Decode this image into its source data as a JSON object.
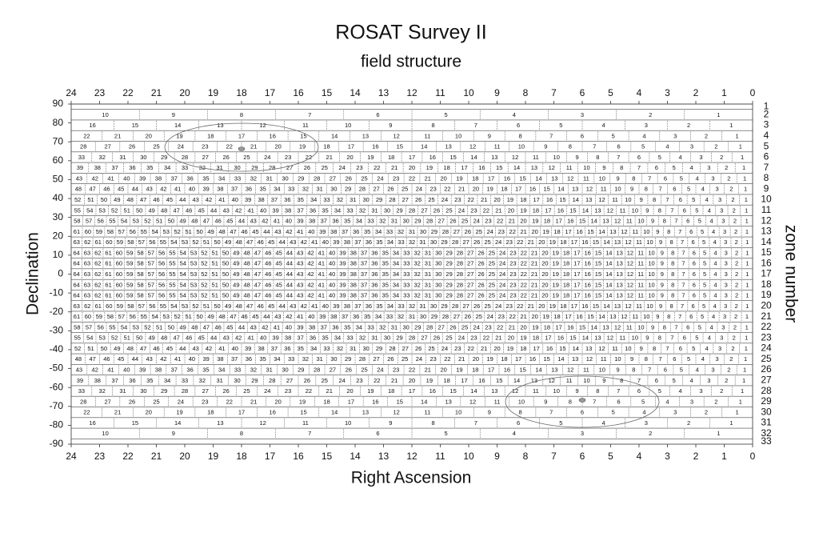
{
  "title": "ROSAT Survey II",
  "subtitle": "field structure",
  "x_axis": {
    "label": "Right Ascension",
    "ticks": [
      24,
      23,
      22,
      21,
      20,
      19,
      18,
      17,
      16,
      15,
      14,
      13,
      12,
      11,
      10,
      9,
      8,
      7,
      6,
      5,
      4,
      3,
      2,
      1,
      0
    ]
  },
  "y_axis": {
    "label": "Declination",
    "ticks": [
      90,
      80,
      70,
      60,
      50,
      40,
      30,
      20,
      10,
      0,
      -10,
      -20,
      -30,
      -40,
      -50,
      -60,
      -70,
      -80,
      -90
    ]
  },
  "zone_axis": {
    "label": "zone number",
    "ticks": [
      1,
      2,
      3,
      4,
      5,
      6,
      7,
      8,
      9,
      10,
      11,
      12,
      13,
      14,
      15,
      16,
      17,
      18,
      19,
      20,
      21,
      22,
      23,
      24,
      25,
      26,
      27,
      28,
      29,
      30,
      31,
      32,
      33
    ]
  },
  "zone_fields": [
    [
      10,
      9,
      8,
      7,
      6,
      5,
      4,
      3,
      2,
      1
    ],
    [
      16,
      15,
      14,
      13,
      12,
      11,
      10,
      9,
      8,
      7,
      6,
      5,
      4,
      3,
      2,
      1
    ],
    [
      22,
      21,
      20,
      19,
      18,
      17,
      16,
      15,
      14,
      13,
      12,
      11,
      10,
      9,
      8,
      7,
      6,
      5,
      4,
      3,
      2,
      1
    ],
    [
      28,
      27,
      26,
      25,
      24,
      23,
      22,
      21,
      20,
      19,
      18,
      17,
      16,
      15,
      14,
      13,
      12,
      11,
      10,
      9,
      8,
      7,
      6,
      5,
      4,
      3,
      2,
      1
    ],
    [
      33,
      32,
      31,
      30,
      29,
      28,
      27,
      26,
      25,
      24,
      23,
      22,
      21,
      20,
      19,
      18,
      17,
      16,
      15,
      14,
      13,
      12,
      11,
      10,
      9,
      8,
      7,
      6,
      5,
      4,
      3,
      2,
      1
    ],
    [
      39,
      38,
      37,
      36,
      35,
      34,
      33,
      32,
      31,
      30,
      29,
      28,
      27,
      26,
      25,
      24,
      23,
      22,
      21,
      20,
      19,
      18,
      17,
      16,
      15,
      14,
      13,
      12,
      11,
      10,
      9,
      8,
      7,
      6,
      5,
      4,
      3,
      2,
      1
    ],
    [
      43,
      42,
      41,
      40,
      39,
      38,
      37,
      36,
      35,
      34,
      33,
      32,
      31,
      30,
      29,
      28,
      27,
      26,
      25,
      24,
      23,
      22,
      21,
      20,
      19,
      18,
      17,
      16,
      15,
      14,
      13,
      12,
      11,
      10,
      9,
      8,
      7,
      6,
      5,
      4,
      3,
      2,
      1
    ],
    [
      48,
      47,
      46,
      45,
      44,
      43,
      42,
      41,
      40,
      39,
      38,
      37,
      36,
      35,
      34,
      33,
      32,
      31,
      30,
      29,
      28,
      27,
      26,
      25,
      24,
      23,
      22,
      21,
      20,
      19,
      18,
      17,
      16,
      15,
      14,
      13,
      12,
      11,
      10,
      9,
      8,
      7,
      6,
      5,
      4,
      3,
      2,
      1
    ],
    [
      52,
      51,
      50,
      49,
      48,
      47,
      46,
      45,
      44,
      43,
      42,
      41,
      40,
      39,
      38,
      37,
      36,
      35,
      34,
      33,
      32,
      31,
      30,
      29,
      28,
      27,
      26,
      25,
      24,
      23,
      22,
      21,
      20,
      19,
      18,
      17,
      16,
      15,
      14,
      13,
      12,
      11,
      10,
      9,
      8,
      7,
      6,
      5,
      4,
      3,
      2,
      1
    ],
    [
      55,
      54,
      53,
      52,
      51,
      50,
      49,
      48,
      47,
      46,
      45,
      44,
      43,
      42,
      41,
      40,
      39,
      38,
      37,
      36,
      35,
      34,
      33,
      32,
      31,
      30,
      29,
      28,
      27,
      26,
      25,
      24,
      23,
      22,
      21,
      20,
      19,
      18,
      17,
      16,
      15,
      14,
      13,
      12,
      11,
      10,
      9,
      8,
      7,
      6,
      5,
      4,
      3,
      2,
      1
    ],
    [
      58,
      57,
      56,
      55,
      54,
      53,
      52,
      51,
      50,
      49,
      48,
      47,
      46,
      45,
      44,
      43,
      42,
      41,
      40,
      39,
      38,
      37,
      36,
      35,
      34,
      33,
      32,
      31,
      30,
      29,
      28,
      27,
      26,
      25,
      24,
      23,
      22,
      21,
      20,
      19,
      18,
      17,
      16,
      15,
      14,
      13,
      12,
      11,
      10,
      9,
      8,
      7,
      6,
      5,
      4,
      3,
      2,
      1
    ],
    [
      61,
      60,
      59,
      58,
      57,
      56,
      55,
      54,
      53,
      52,
      51,
      50,
      49,
      48,
      47,
      46,
      45,
      44,
      43,
      42,
      41,
      40,
      39,
      38,
      37,
      36,
      35,
      34,
      33,
      32,
      31,
      30,
      29,
      28,
      27,
      26,
      25,
      24,
      23,
      22,
      21,
      20,
      19,
      18,
      17,
      16,
      15,
      14,
      13,
      12,
      11,
      10,
      9,
      8,
      7,
      6,
      5,
      4,
      3,
      2,
      1
    ],
    [
      63,
      62,
      61,
      60,
      59,
      58,
      57,
      56,
      55,
      54,
      53,
      52,
      51,
      50,
      49,
      48,
      47,
      46,
      45,
      44,
      43,
      42,
      41,
      40,
      39,
      38,
      37,
      36,
      35,
      34,
      33,
      32,
      31,
      30,
      29,
      28,
      27,
      26,
      25,
      24,
      23,
      22,
      21,
      20,
      19,
      18,
      17,
      16,
      15,
      14,
      13,
      12,
      11,
      10,
      9,
      8,
      7,
      6,
      5,
      4,
      3,
      2,
      1
    ],
    [
      64,
      63,
      62,
      61,
      60,
      59,
      58,
      57,
      56,
      55,
      54,
      53,
      52,
      51,
      50,
      49,
      48,
      47,
      46,
      45,
      44,
      43,
      42,
      41,
      40,
      39,
      38,
      37,
      36,
      35,
      34,
      33,
      32,
      31,
      30,
      29,
      28,
      27,
      26,
      25,
      24,
      23,
      22,
      21,
      20,
      19,
      18,
      17,
      16,
      15,
      14,
      13,
      12,
      11,
      10,
      9,
      8,
      7,
      6,
      5,
      4,
      3,
      2,
      1
    ],
    [
      64,
      63,
      62,
      61,
      60,
      59,
      58,
      57,
      56,
      55,
      54,
      53,
      52,
      51,
      50,
      49,
      48,
      47,
      46,
      45,
      44,
      43,
      42,
      41,
      40,
      39,
      38,
      37,
      36,
      35,
      34,
      33,
      32,
      31,
      30,
      29,
      28,
      27,
      26,
      25,
      24,
      23,
      22,
      21,
      20,
      19,
      18,
      17,
      16,
      15,
      14,
      13,
      12,
      11,
      10,
      9,
      8,
      7,
      6,
      5,
      4,
      3,
      2,
      1
    ],
    [
      64,
      63,
      62,
      61,
      60,
      59,
      58,
      57,
      56,
      55,
      54,
      53,
      52,
      51,
      50,
      49,
      48,
      47,
      46,
      45,
      44,
      43,
      42,
      41,
      40,
      39,
      38,
      37,
      36,
      35,
      34,
      33,
      32,
      31,
      30,
      29,
      28,
      27,
      26,
      25,
      24,
      23,
      22,
      21,
      20,
      19,
      18,
      17,
      16,
      15,
      14,
      13,
      12,
      11,
      10,
      9,
      8,
      7,
      6,
      5,
      4,
      3,
      2,
      1
    ],
    [
      64,
      63,
      62,
      61,
      60,
      59,
      58,
      57,
      56,
      55,
      54,
      53,
      52,
      51,
      50,
      49,
      48,
      47,
      46,
      45,
      44,
      43,
      42,
      41,
      40,
      39,
      38,
      37,
      36,
      35,
      34,
      33,
      32,
      31,
      30,
      29,
      28,
      27,
      26,
      25,
      24,
      23,
      22,
      21,
      20,
      19,
      18,
      17,
      16,
      15,
      14,
      13,
      12,
      11,
      10,
      9,
      8,
      7,
      6,
      5,
      4,
      3,
      2,
      1
    ],
    [
      64,
      63,
      62,
      61,
      60,
      59,
      58,
      57,
      56,
      55,
      54,
      53,
      52,
      51,
      50,
      49,
      48,
      47,
      46,
      45,
      44,
      43,
      42,
      41,
      40,
      39,
      38,
      37,
      36,
      35,
      34,
      33,
      32,
      31,
      30,
      29,
      28,
      27,
      26,
      25,
      24,
      23,
      22,
      21,
      20,
      19,
      18,
      17,
      16,
      15,
      14,
      13,
      12,
      11,
      10,
      9,
      8,
      7,
      6,
      5,
      4,
      3,
      2,
      1
    ],
    [
      63,
      62,
      61,
      60,
      59,
      58,
      57,
      56,
      55,
      54,
      53,
      52,
      51,
      50,
      49,
      48,
      47,
      46,
      45,
      44,
      43,
      42,
      41,
      40,
      39,
      38,
      37,
      36,
      35,
      34,
      33,
      32,
      31,
      30,
      29,
      28,
      27,
      26,
      25,
      24,
      23,
      22,
      21,
      20,
      19,
      18,
      17,
      16,
      15,
      14,
      13,
      12,
      11,
      10,
      9,
      8,
      7,
      6,
      5,
      4,
      3,
      2,
      1
    ],
    [
      61,
      60,
      59,
      58,
      57,
      56,
      55,
      54,
      53,
      52,
      51,
      50,
      49,
      48,
      47,
      46,
      45,
      44,
      43,
      42,
      41,
      40,
      39,
      38,
      37,
      36,
      35,
      34,
      33,
      32,
      31,
      30,
      29,
      28,
      27,
      26,
      25,
      24,
      23,
      22,
      21,
      20,
      19,
      18,
      17,
      16,
      15,
      14,
      13,
      12,
      11,
      10,
      9,
      8,
      7,
      6,
      5,
      4,
      3,
      2,
      1
    ],
    [
      58,
      57,
      56,
      55,
      54,
      53,
      52,
      51,
      50,
      49,
      48,
      47,
      46,
      45,
      44,
      43,
      42,
      41,
      40,
      39,
      38,
      37,
      36,
      35,
      34,
      33,
      32,
      31,
      30,
      29,
      28,
      27,
      26,
      25,
      24,
      23,
      22,
      21,
      20,
      19,
      18,
      17,
      16,
      15,
      14,
      13,
      12,
      11,
      10,
      9,
      8,
      7,
      6,
      5,
      4,
      3,
      2,
      1
    ],
    [
      55,
      54,
      53,
      52,
      51,
      50,
      49,
      48,
      47,
      46,
      45,
      44,
      43,
      42,
      41,
      40,
      39,
      38,
      37,
      36,
      35,
      34,
      33,
      32,
      31,
      30,
      29,
      28,
      27,
      26,
      25,
      24,
      23,
      22,
      21,
      20,
      19,
      18,
      17,
      16,
      15,
      14,
      13,
      12,
      11,
      10,
      9,
      8,
      7,
      6,
      5,
      4,
      3,
      2,
      1
    ],
    [
      52,
      51,
      50,
      49,
      48,
      47,
      46,
      45,
      44,
      43,
      42,
      41,
      40,
      39,
      38,
      37,
      36,
      35,
      34,
      33,
      32,
      31,
      30,
      29,
      28,
      27,
      26,
      25,
      24,
      23,
      22,
      21,
      20,
      19,
      18,
      17,
      16,
      15,
      14,
      13,
      12,
      11,
      10,
      9,
      8,
      7,
      6,
      5,
      4,
      3,
      2,
      1
    ],
    [
      48,
      47,
      46,
      45,
      44,
      43,
      42,
      41,
      40,
      39,
      38,
      37,
      36,
      35,
      34,
      33,
      32,
      31,
      30,
      29,
      28,
      27,
      26,
      25,
      24,
      23,
      22,
      21,
      20,
      19,
      18,
      17,
      16,
      15,
      14,
      13,
      12,
      11,
      10,
      9,
      8,
      7,
      6,
      5,
      4,
      3,
      2,
      1
    ],
    [
      43,
      42,
      41,
      40,
      39,
      38,
      37,
      36,
      35,
      34,
      33,
      32,
      31,
      30,
      29,
      28,
      27,
      26,
      25,
      24,
      23,
      22,
      21,
      20,
      19,
      18,
      17,
      16,
      15,
      14,
      13,
      12,
      11,
      10,
      9,
      8,
      7,
      6,
      5,
      4,
      3,
      2,
      1
    ],
    [
      39,
      38,
      37,
      36,
      35,
      34,
      33,
      32,
      31,
      30,
      29,
      28,
      27,
      26,
      25,
      24,
      23,
      22,
      21,
      20,
      19,
      18,
      17,
      16,
      15,
      14,
      13,
      12,
      11,
      10,
      9,
      8,
      7,
      6,
      5,
      4,
      3,
      2,
      1
    ],
    [
      33,
      32,
      31,
      30,
      29,
      28,
      27,
      26,
      25,
      24,
      23,
      22,
      21,
      20,
      19,
      18,
      17,
      16,
      15,
      14,
      13,
      12,
      11,
      10,
      9,
      8,
      7,
      6,
      5,
      4,
      3,
      2,
      1
    ],
    [
      28,
      27,
      26,
      25,
      24,
      23,
      22,
      21,
      20,
      19,
      18,
      17,
      16,
      15,
      14,
      13,
      12,
      11,
      10,
      9,
      8,
      7,
      6,
      5,
      4,
      3,
      2,
      1
    ],
    [
      22,
      21,
      20,
      19,
      18,
      17,
      16,
      15,
      14,
      13,
      12,
      11,
      10,
      9,
      8,
      7,
      6,
      5,
      4,
      3,
      2,
      1
    ],
    [
      16,
      15,
      14,
      13,
      12,
      11,
      10,
      9,
      8,
      7,
      6,
      5,
      4,
      3,
      2,
      1
    ],
    [
      10,
      9,
      8,
      7,
      6,
      5,
      4,
      3,
      2,
      1
    ]
  ]
}
